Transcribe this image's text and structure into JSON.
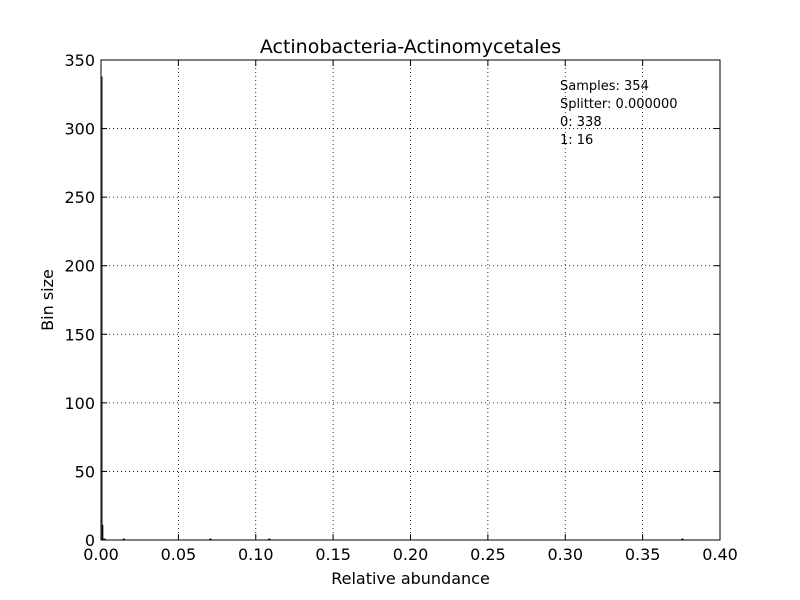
{
  "chart_data": {
    "type": "bar",
    "title": "Actinobacteria-Actinomycetales",
    "xlabel": "Relative abundance",
    "ylabel": "Bin size",
    "xlim": [
      0.0,
      0.4
    ],
    "ylim": [
      0,
      350
    ],
    "xticks": [
      0.0,
      0.05,
      0.1,
      0.15,
      0.2,
      0.25,
      0.3,
      0.35,
      0.4
    ],
    "xtick_labels": [
      "0.00",
      "0.05",
      "0.10",
      "0.15",
      "0.20",
      "0.25",
      "0.30",
      "0.35",
      "0.40"
    ],
    "yticks": [
      0,
      50,
      100,
      150,
      200,
      250,
      300,
      350
    ],
    "ytick_labels": [
      "0",
      "50",
      "100",
      "150",
      "200",
      "250",
      "300",
      "350"
    ],
    "grid": true,
    "bins": [
      {
        "x0": 0.0,
        "x1": 0.0004,
        "count": 338,
        "color": "#000000"
      },
      {
        "x0": 0.0004,
        "x1": 0.0015,
        "count": 11,
        "color": "#000000"
      },
      {
        "x0": 0.0015,
        "x1": 0.003,
        "count": 1,
        "color": "#000000"
      },
      {
        "x0": 0.014,
        "x1": 0.0155,
        "count": 1,
        "color": "#000000"
      },
      {
        "x0": 0.07,
        "x1": 0.0715,
        "count": 1,
        "color": "#000000"
      },
      {
        "x0": 0.108,
        "x1": 0.1095,
        "count": 1,
        "color": "#000000"
      },
      {
        "x0": 0.375,
        "x1": 0.3765,
        "count": 1,
        "color": "#000000"
      }
    ],
    "splitter": {
      "x": 0.0,
      "color": "#ff0000"
    },
    "annotations": [
      "Samples: 354",
      "Splitter: 0.000000",
      "0: 338",
      "1: 16"
    ]
  }
}
